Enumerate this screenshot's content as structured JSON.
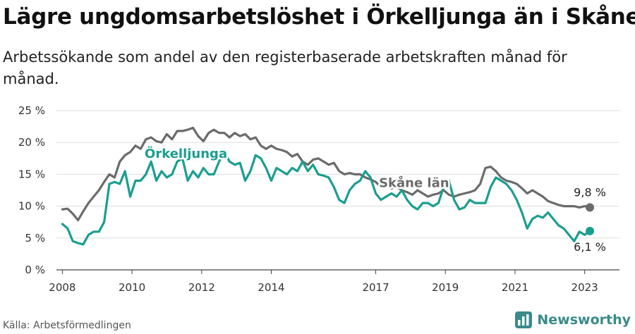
{
  "header": {
    "title": "Lägre ungdomsarbetslöshet i Örkelljunga än i Skåne",
    "subtitle": "Arbetssökande som andel av den registerbaserade arbetskraften månad för månad."
  },
  "footer": {
    "source": "Källa: Arbetsförmedlingen",
    "brand": "Newsworthy"
  },
  "colors": {
    "orkelljunga": "#1a9e90",
    "skane": "#6b6b6b",
    "grid": "#dddddd",
    "brand": "#3a8a8a"
  },
  "chart_data": {
    "type": "line",
    "title": "Lägre ungdomsarbetslöshet i Örkelljunga än i Skåne",
    "xlabel": "",
    "ylabel": "",
    "xlim": [
      2007.83,
      2024.0
    ],
    "ylim": [
      0,
      25
    ],
    "x_ticks": [
      "2008",
      "2010",
      "2012",
      "2014",
      "2017",
      "2019",
      "2021",
      "2023"
    ],
    "y_ticks": [
      "0 %",
      "5 %",
      "10 %",
      "15 %",
      "20 %",
      "25 %"
    ],
    "grid": true,
    "series": [
      {
        "name": "Skåne län",
        "color": "#6b6b6b",
        "end_label": "9,8 %",
        "x": [
          2008.0,
          2008.15,
          2008.3,
          2008.45,
          2008.6,
          2008.75,
          2008.9,
          2009.05,
          2009.2,
          2009.35,
          2009.5,
          2009.65,
          2009.8,
          2009.95,
          2010.1,
          2010.25,
          2010.4,
          2010.55,
          2010.7,
          2010.85,
          2011.0,
          2011.15,
          2011.3,
          2011.45,
          2011.6,
          2011.75,
          2011.9,
          2012.05,
          2012.2,
          2012.35,
          2012.5,
          2012.65,
          2012.8,
          2012.95,
          2013.1,
          2013.25,
          2013.4,
          2013.55,
          2013.7,
          2013.85,
          2014.0,
          2014.15,
          2014.3,
          2014.45,
          2014.6,
          2014.75,
          2014.9,
          2015.05,
          2015.2,
          2015.35,
          2015.5,
          2015.65,
          2015.8,
          2015.95,
          2016.1,
          2016.25,
          2016.4,
          2016.55,
          2016.7,
          2016.85,
          2017.0,
          2017.15,
          2017.3,
          2017.45,
          2017.6,
          2017.75,
          2017.9,
          2018.05,
          2018.2,
          2018.35,
          2018.5,
          2018.65,
          2018.8,
          2018.95,
          2019.1,
          2019.25,
          2019.4,
          2019.55,
          2019.7,
          2019.85,
          2020.0,
          2020.15,
          2020.3,
          2020.45,
          2020.6,
          2020.75,
          2020.9,
          2021.05,
          2021.2,
          2021.35,
          2021.5,
          2021.65,
          2021.8,
          2021.95,
          2022.1,
          2022.25,
          2022.4,
          2022.55,
          2022.7,
          2022.85,
          2023.0,
          2023.15
        ],
        "values": [
          9.5,
          9.6,
          8.8,
          7.8,
          9.2,
          10.5,
          11.5,
          12.5,
          13.8,
          15.0,
          14.5,
          17.0,
          18.0,
          18.5,
          19.5,
          19.0,
          20.5,
          20.8,
          20.2,
          20.0,
          21.3,
          20.5,
          21.8,
          21.8,
          22.0,
          22.3,
          21.0,
          20.2,
          21.5,
          22.0,
          21.5,
          21.5,
          20.8,
          21.5,
          21.0,
          21.3,
          20.5,
          20.8,
          19.5,
          19.0,
          19.5,
          19.0,
          18.8,
          18.5,
          17.8,
          18.2,
          17.0,
          16.5,
          17.3,
          17.5,
          17.0,
          16.5,
          16.8,
          15.5,
          15.0,
          15.2,
          15.0,
          15.0,
          14.5,
          14.2,
          13.8,
          13.0,
          13.5,
          12.8,
          13.0,
          12.5,
          12.2,
          11.8,
          12.5,
          12.0,
          11.5,
          11.8,
          12.0,
          12.5,
          11.8,
          11.5,
          11.8,
          12.0,
          12.2,
          12.5,
          13.5,
          16.0,
          16.2,
          15.5,
          14.5,
          14.0,
          13.8,
          13.5,
          12.8,
          12.0,
          12.5,
          12.0,
          11.5,
          10.8,
          10.5,
          10.2,
          10.0,
          10.0,
          10.0,
          9.8,
          10.0,
          9.8
        ]
      },
      {
        "name": "Örkelljunga",
        "color": "#1a9e90",
        "end_label": "6,1 %",
        "x": [
          2008.0,
          2008.15,
          2008.3,
          2008.45,
          2008.6,
          2008.75,
          2008.9,
          2009.05,
          2009.2,
          2009.35,
          2009.5,
          2009.65,
          2009.8,
          2009.95,
          2010.1,
          2010.25,
          2010.4,
          2010.55,
          2010.7,
          2010.85,
          2011.0,
          2011.15,
          2011.3,
          2011.45,
          2011.6,
          2011.75,
          2011.9,
          2012.05,
          2012.2,
          2012.35,
          2012.5,
          2012.65,
          2012.8,
          2012.95,
          2013.1,
          2013.25,
          2013.4,
          2013.55,
          2013.7,
          2013.85,
          2014.0,
          2014.15,
          2014.3,
          2014.45,
          2014.6,
          2014.75,
          2014.9,
          2015.05,
          2015.2,
          2015.35,
          2015.5,
          2015.65,
          2015.8,
          2015.95,
          2016.1,
          2016.25,
          2016.4,
          2016.55,
          2016.7,
          2016.85,
          2017.0,
          2017.15,
          2017.3,
          2017.45,
          2017.6,
          2017.75,
          2017.9,
          2018.05,
          2018.2,
          2018.35,
          2018.5,
          2018.65,
          2018.8,
          2018.95,
          2019.1,
          2019.25,
          2019.4,
          2019.55,
          2019.7,
          2019.85,
          2020.0,
          2020.15,
          2020.3,
          2020.45,
          2020.6,
          2020.75,
          2020.9,
          2021.05,
          2021.2,
          2021.35,
          2021.5,
          2021.65,
          2021.8,
          2021.95,
          2022.1,
          2022.25,
          2022.4,
          2022.55,
          2022.7,
          2022.85,
          2023.0,
          2023.15
        ],
        "values": [
          7.2,
          6.5,
          4.5,
          4.2,
          4.0,
          5.5,
          6.0,
          6.0,
          7.5,
          13.5,
          13.8,
          13.5,
          15.5,
          11.5,
          14.0,
          14.0,
          15.0,
          17.0,
          14.0,
          15.5,
          14.5,
          15.0,
          17.0,
          17.5,
          14.0,
          15.5,
          14.5,
          16.0,
          15.0,
          15.0,
          17.0,
          18.5,
          17.0,
          16.5,
          16.8,
          14.0,
          15.5,
          18.0,
          17.5,
          16.0,
          14.0,
          16.0,
          15.5,
          15.0,
          16.0,
          15.5,
          17.0,
          15.5,
          16.5,
          15.0,
          14.8,
          14.5,
          13.0,
          11.0,
          10.5,
          12.5,
          13.5,
          14.0,
          15.5,
          14.5,
          12.0,
          11.0,
          11.5,
          12.0,
          11.5,
          12.5,
          11.0,
          10.0,
          9.5,
          10.5,
          10.5,
          10.0,
          10.5,
          13.0,
          14.0,
          11.0,
          9.5,
          9.8,
          11.0,
          10.5,
          10.5,
          10.5,
          13.0,
          14.5,
          14.0,
          13.5,
          12.5,
          11.0,
          9.0,
          6.5,
          8.0,
          8.5,
          8.2,
          9.0,
          8.0,
          7.0,
          6.5,
          5.5,
          4.5,
          6.0,
          5.5,
          6.1
        ]
      }
    ]
  }
}
